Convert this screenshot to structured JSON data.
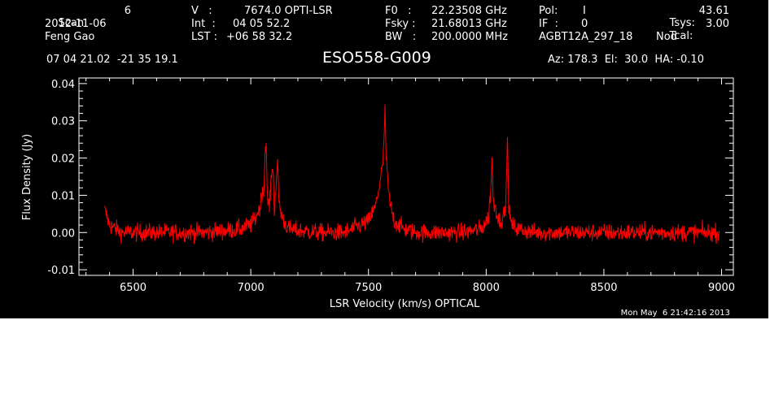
{
  "header": {
    "scan_label": "Scan",
    "scan_value": "6",
    "date": "2012-11-06",
    "observer": "Feng Gao",
    "v_label": "V   :",
    "v_value": "7674.0 OPTI-LSR",
    "int_label": "Int  :",
    "int_value": "04 05 52.2",
    "lst_label": "LST :",
    "lst_value": "+06 58 32.2",
    "f0_label": "F0   :",
    "f0_value": "22.23508 GHz",
    "fsky_label": "Fsky :",
    "fsky_value": "21.68013 GHz",
    "bw_label": "BW   :",
    "bw_value": "200.0000 MHz",
    "pol_label": "Pol:",
    "pol_value": "I",
    "if_label": "IF  :",
    "if_value": "0",
    "project": "AGBT12A_297_18",
    "tsys_label": "Tsys:",
    "tsys_value": "43.61",
    "tcal_label": "Tcal:",
    "tcal_value": "3.00",
    "mode": "Nod",
    "coords": "07 04 21.02  -21 35 19.1",
    "source": "ESO558-G009",
    "pointing": "Az: 178.3  El:  30.0  HA: -0.10"
  },
  "footer": {
    "timestamp": "Mon May  6 21:42:16 2013"
  },
  "colors": {
    "background": "#000000",
    "axes": "#ffffff",
    "trace": "#ff0000"
  },
  "chart_data": {
    "type": "line",
    "title": "ESO558-G009",
    "xlabel": "LSR Velocity (km/s) OPTICAL",
    "ylabel": "Flux Density (Jy)",
    "xlim": [
      6270,
      9050
    ],
    "ylim": [
      -0.0115,
      0.0415
    ],
    "x_ticks": [
      6500,
      7000,
      7500,
      8000,
      8500,
      9000
    ],
    "x_tick_labels": [
      "6500",
      "7000",
      "7500",
      "8000",
      "8500",
      "9000"
    ],
    "y_ticks": [
      -0.01,
      0.0,
      0.01,
      0.02,
      0.03,
      0.04
    ],
    "y_tick_labels": [
      "-0.01",
      "0.00",
      "0.01",
      "0.02",
      "0.03",
      "0.04"
    ],
    "x_range": [
      6380,
      8990
    ],
    "noise_rms": 0.0012,
    "series": [
      {
        "name": "",
        "x": [
          6380,
          6390,
          6400,
          6450,
          6500,
          6600,
          6700,
          6800,
          6900,
          6960,
          7000,
          7020,
          7040,
          7050,
          7055,
          7060,
          7065,
          7070,
          7080,
          7090,
          7095,
          7100,
          7110,
          7115,
          7120,
          7130,
          7140,
          7160,
          7200,
          7300,
          7400,
          7450,
          7500,
          7530,
          7550,
          7560,
          7565,
          7570,
          7575,
          7580,
          7590,
          7610,
          7650,
          7700,
          7800,
          7900,
          7980,
          8010,
          8020,
          8025,
          8030,
          8040,
          8050,
          8060,
          8070,
          8080,
          8085,
          8090,
          8095,
          8100,
          8110,
          8130,
          8200,
          8300,
          8400,
          8500,
          8600,
          8700,
          8800,
          8900,
          8990
        ],
        "y": [
          0.006,
          0.004,
          0.002,
          0.0,
          0.0,
          0.0,
          0.0,
          0.0,
          0.0005,
          0.001,
          0.002,
          0.004,
          0.007,
          0.012,
          0.01,
          0.02,
          0.026,
          0.009,
          0.007,
          0.018,
          0.016,
          0.006,
          0.015,
          0.018,
          0.008,
          0.005,
          0.003,
          0.001,
          0.0005,
          0.0,
          0.0,
          0.0015,
          0.003,
          0.007,
          0.014,
          0.018,
          0.022,
          0.034,
          0.02,
          0.015,
          0.008,
          0.003,
          0.001,
          0.0,
          0.0,
          0.0,
          0.001,
          0.004,
          0.012,
          0.021,
          0.008,
          0.007,
          0.004,
          0.003,
          0.004,
          0.006,
          0.01,
          0.027,
          0.009,
          0.004,
          0.002,
          0.001,
          0.0,
          0.0,
          0.0,
          0.0,
          0.0,
          0.0,
          0.0,
          0.0,
          0.0
        ]
      }
    ],
    "grid": false,
    "legend": "none"
  }
}
